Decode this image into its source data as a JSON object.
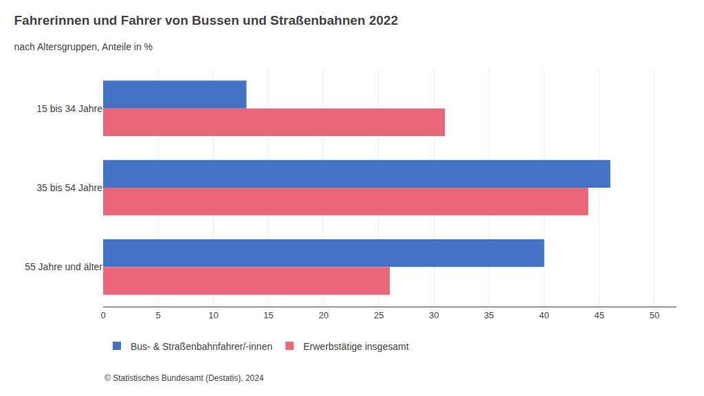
{
  "chart_data": {
    "type": "bar",
    "orientation": "horizontal",
    "title": "Fahrerinnen und Fahrer von Bussen und Straßenbahnen 2022",
    "subtitle": "nach Altersgruppen, Anteile in %",
    "categories": [
      "15 bis 34 Jahre",
      "35 bis 54 Jahre",
      "55 Jahre und älter"
    ],
    "series": [
      {
        "name": "Bus- & Straßenbahnfahrer/-innen",
        "color": "#4472C4",
        "values": [
          13,
          46,
          40
        ]
      },
      {
        "name": "Erwerbstätige insgesamt",
        "color": "#E8687A",
        "values": [
          31,
          44,
          26
        ]
      }
    ],
    "xlim": [
      0,
      52
    ],
    "xticks": [
      0,
      5,
      10,
      15,
      20,
      25,
      30,
      35,
      40,
      45,
      50
    ],
    "grid": true,
    "legend": "bottom",
    "annotations": [
      "© Statistisches Bundesamt (Destatis), 2024"
    ]
  }
}
